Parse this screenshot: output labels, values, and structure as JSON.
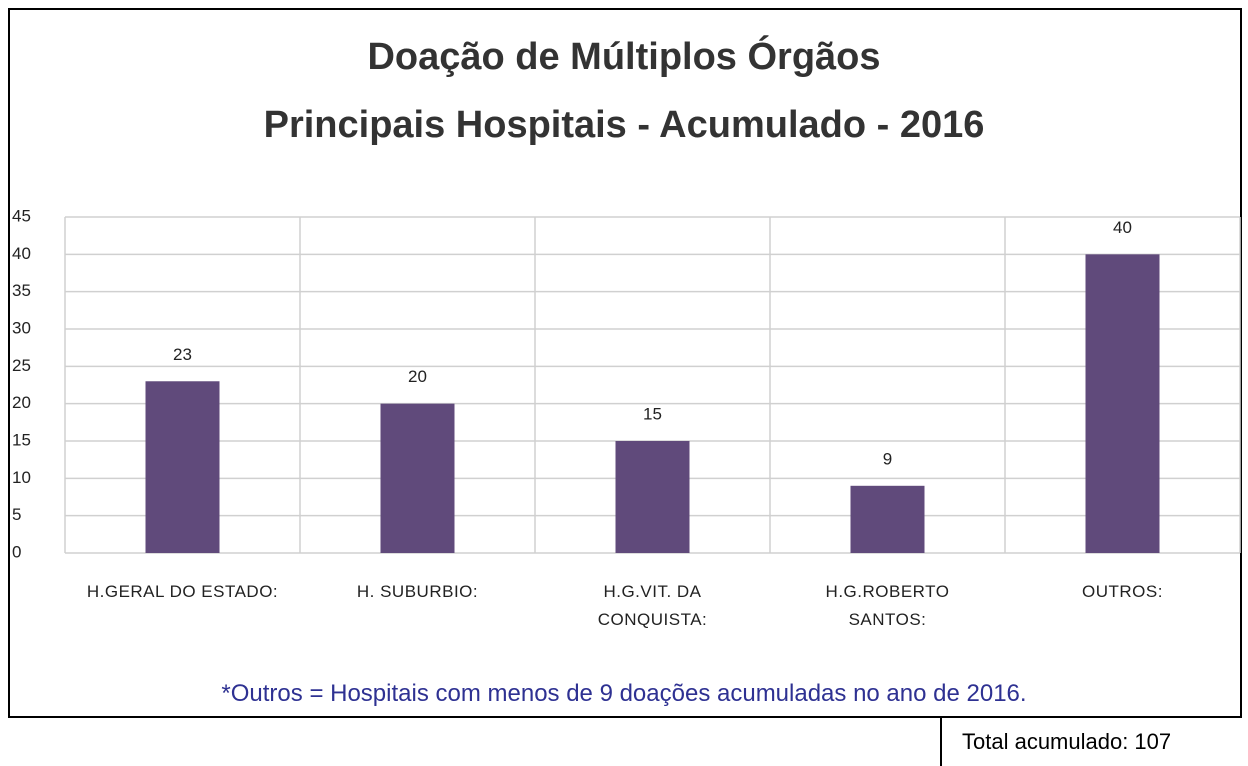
{
  "chart_data": {
    "type": "bar",
    "title": "Doação de Múltiplos Órgãos",
    "subtitle": "Principais Hospitais - Acumulado - 2016",
    "categories": [
      "H.GERAL DO ESTADO:",
      "H. SUBURBIO:",
      "H.G.VIT. DA CONQUISTA:",
      "H.G.ROBERTO SANTOS:",
      "OUTROS:"
    ],
    "values": [
      23,
      20,
      15,
      9,
      40
    ],
    "color": "#604a7b",
    "ylim": [
      0,
      45
    ],
    "yticks": [
      0,
      5,
      10,
      15,
      20,
      25,
      30,
      35,
      40,
      45
    ],
    "grid": true,
    "annotations": [
      "*Outros = Hospitais com menos de 9 doações acumuladas no ano de 2016.",
      "Total acumulado: 107"
    ]
  }
}
